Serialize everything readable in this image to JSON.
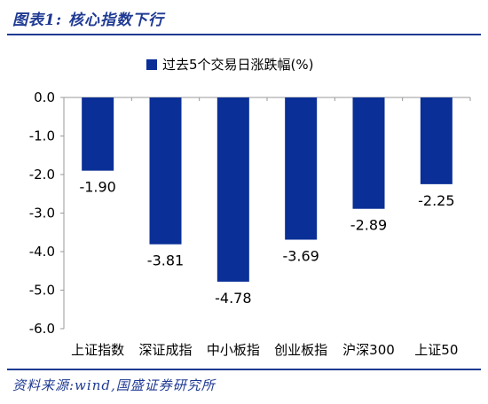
{
  "figure": {
    "title": "图表1:    核心指数下行",
    "source": "资料来源:wind,国盛证券研究所"
  },
  "colors": {
    "bar": "#0a2f96",
    "accent": "#1f3a93",
    "axis": "#999999"
  },
  "chart_data": {
    "type": "bar",
    "categories": [
      "上证指数",
      "深证成指",
      "中小板指",
      "创业板指",
      "沪深300",
      "上证50"
    ],
    "series": [
      {
        "name": "过去5个交易日涨跌幅(%)",
        "values": [
          -1.9,
          -3.81,
          -4.78,
          -3.69,
          -2.89,
          -2.25
        ]
      }
    ],
    "data_labels": [
      "-1.90",
      "-3.81",
      "-4.78",
      "-3.69",
      "-2.89",
      "-2.25"
    ],
    "yticks": [
      "0.0",
      "-1.0",
      "-2.0",
      "-3.0",
      "-4.0",
      "-5.0",
      "-6.0"
    ],
    "ylim": [
      -6.0,
      0.0
    ],
    "xlabel": "",
    "ylabel": "",
    "grid": false,
    "legend_position": "top"
  }
}
